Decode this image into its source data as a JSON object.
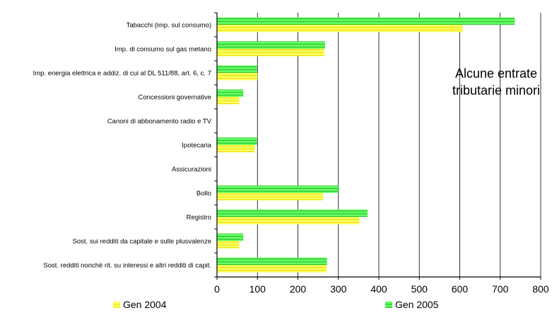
{
  "chart_data": {
    "type": "bar",
    "orientation": "horizontal",
    "title": "",
    "annotation": [
      "Alcune entrate",
      "tributarie minori"
    ],
    "xlabel": "",
    "ylabel": "",
    "xlim": [
      0,
      800
    ],
    "x_ticks": [
      "0",
      "100",
      "200",
      "300",
      "400",
      "500",
      "600",
      "700",
      "800"
    ],
    "grid": "vertical",
    "legend_position": "bottom",
    "categories": [
      "Tabacchi (imp. sul consumo)",
      "Imp. di consumo sul gas metano",
      "Imp. energia elettrica e addiz. di cui al DL 511/88, art. 6, c. 7",
      "Concessioni governative",
      "Canoni di abbonamento radio e TV",
      "Ipotecaria",
      "Assicurazioni",
      "Bollo",
      "Registro",
      "Sost. sui redditi da capitale e sulle plusvalenze",
      "Sost. redditi nonchè rit. su interessi e altri redditi di capit."
    ],
    "series": [
      {
        "name": "Gen 2004",
        "color": "#ffff66",
        "stripe": "#e6e600",
        "values": [
          607,
          265,
          100,
          55,
          0,
          93,
          0,
          262,
          352,
          55,
          271
        ]
      },
      {
        "name": "Gen 2005",
        "color": "#66ff66",
        "stripe": "#2bbf2b",
        "values": [
          736,
          267,
          99,
          65,
          0,
          99,
          0,
          300,
          372,
          65,
          272
        ]
      }
    ]
  }
}
